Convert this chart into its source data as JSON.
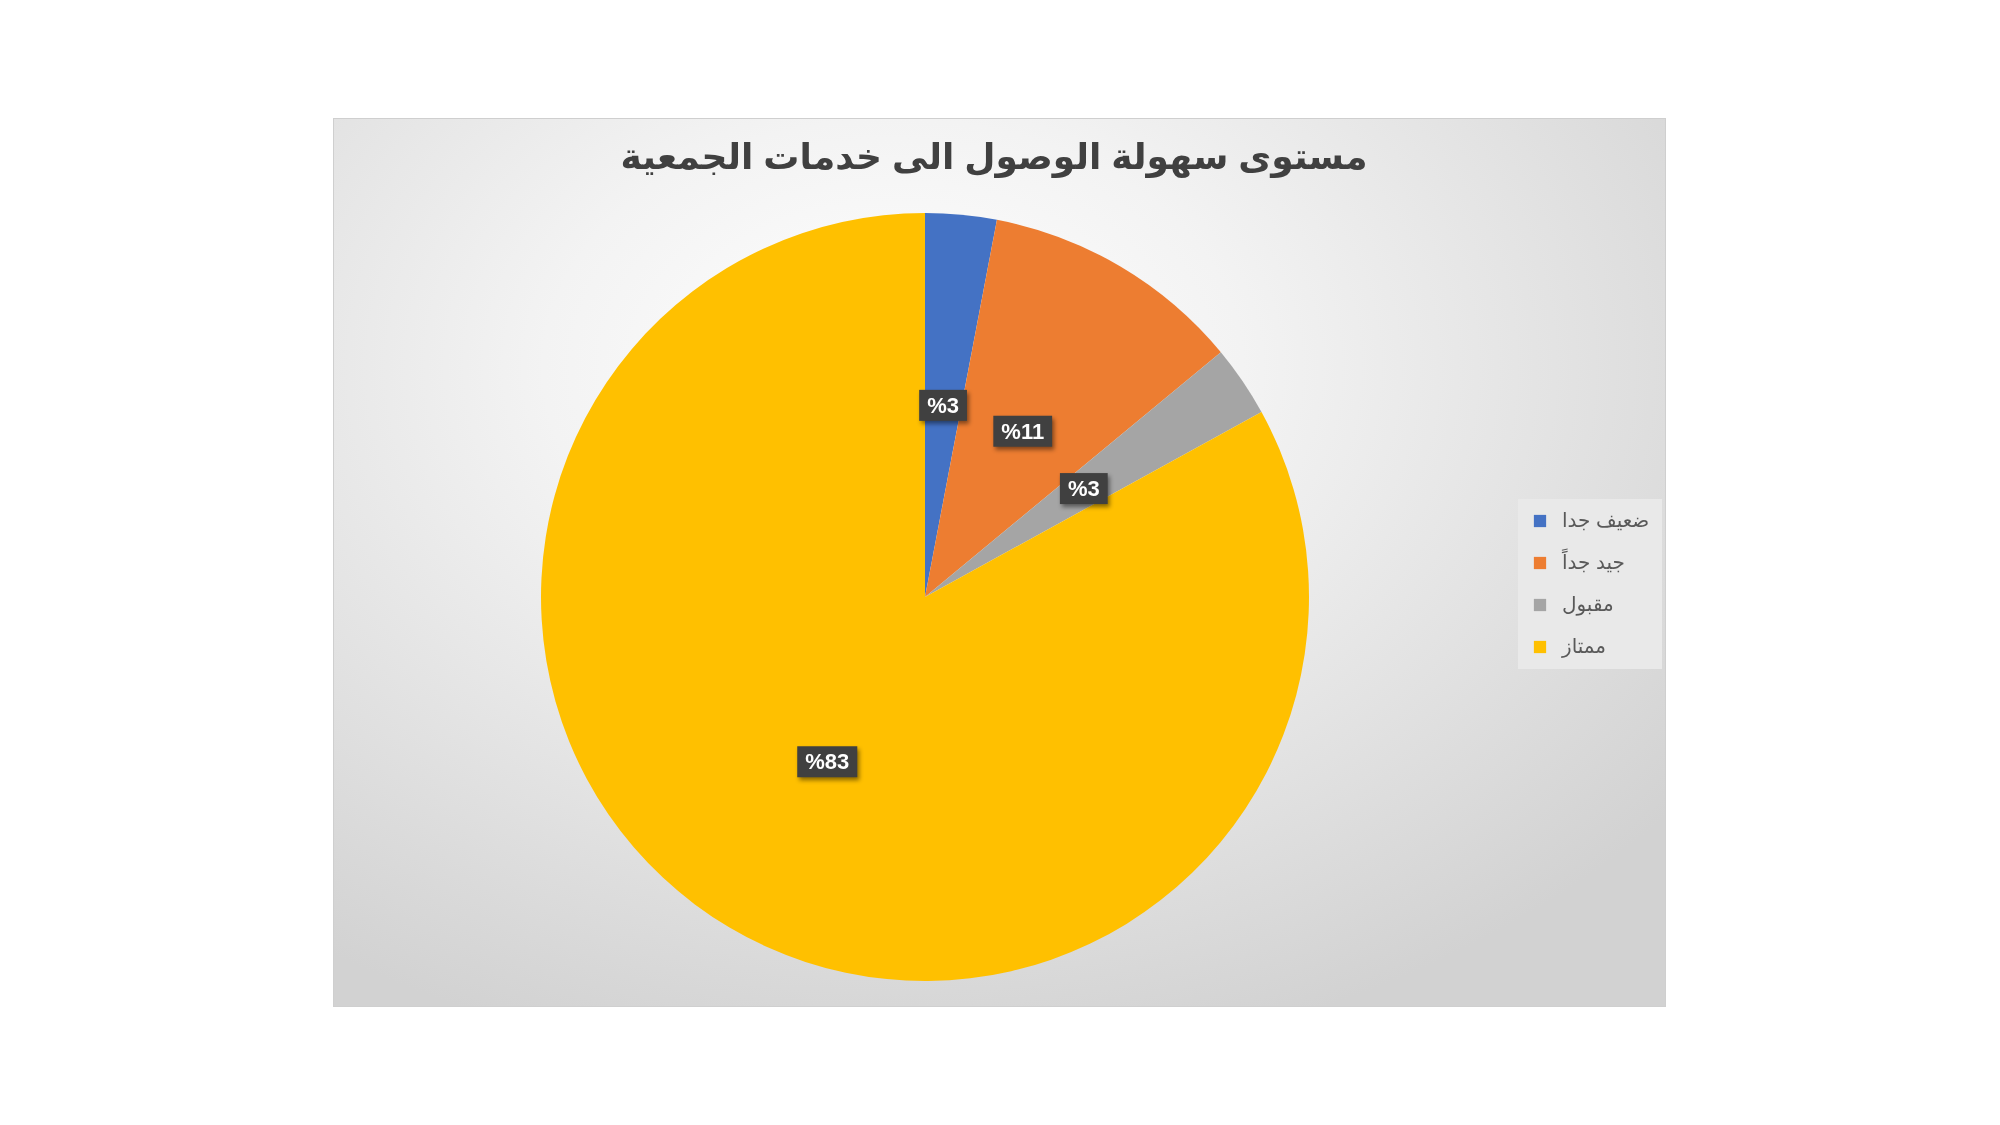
{
  "chart_data": {
    "type": "pie",
    "title": "مستوى سهولة الوصول الى خدمات الجمعية",
    "categories": [
      "ضعيف جدا",
      "جيد جداً",
      "مقبول",
      "ممتاز"
    ],
    "values": [
      3,
      11,
      3,
      83
    ],
    "colors": [
      "#4472c4",
      "#ed7d31",
      "#a5a5a5",
      "#ffc000"
    ],
    "value_labels": [
      "%3",
      "%11",
      "%3",
      "%83"
    ],
    "legend": "right"
  }
}
